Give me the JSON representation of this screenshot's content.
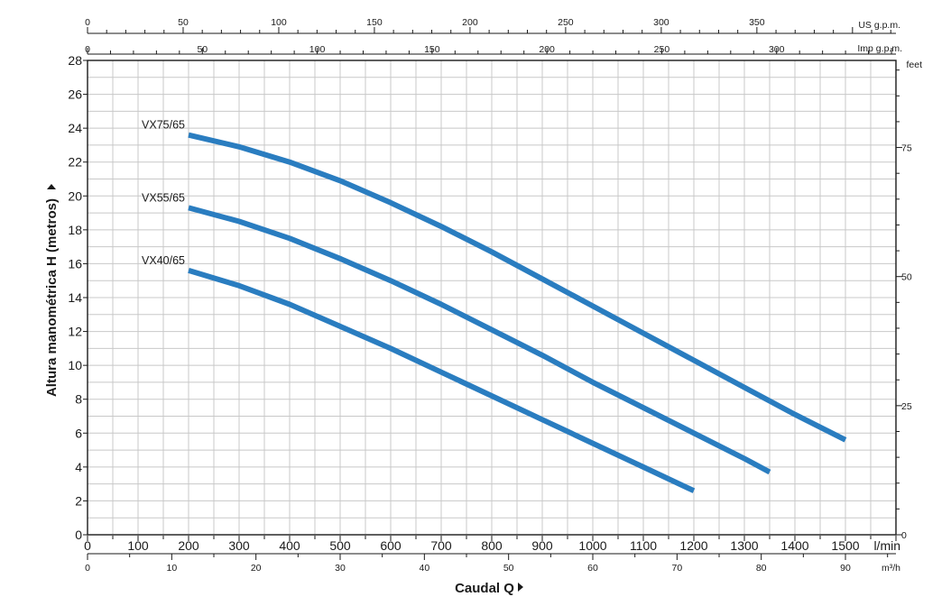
{
  "chart_data": {
    "type": "line",
    "xlabel": "Caudal Q",
    "ylabel": "Altura manométrica H (metros)",
    "xlim": [
      0,
      1600
    ],
    "ylim": [
      0,
      28
    ],
    "grid": true,
    "x_ticks": [
      "0",
      "100",
      "200",
      "300",
      "400",
      "500",
      "600",
      "700",
      "800",
      "900",
      "1000",
      "1100",
      "1200",
      "1300",
      "1400",
      "1500"
    ],
    "x_unit": "l/min",
    "y_ticks": [
      "0",
      "2",
      "4",
      "6",
      "8",
      "10",
      "12",
      "14",
      "16",
      "18",
      "20",
      "22",
      "24",
      "26",
      "28"
    ],
    "series_color": "#2a7dc0",
    "series": [
      {
        "name": "VX75/65",
        "x": [
          200,
          300,
          400,
          500,
          600,
          700,
          800,
          900,
          1000,
          1100,
          1200,
          1300,
          1400,
          1500
        ],
        "y": [
          23.6,
          22.9,
          22.0,
          20.9,
          19.6,
          18.2,
          16.7,
          15.1,
          13.5,
          11.9,
          10.3,
          8.7,
          7.1,
          5.6
        ]
      },
      {
        "name": "VX55/65",
        "x": [
          200,
          300,
          400,
          500,
          600,
          700,
          800,
          900,
          1000,
          1100,
          1200,
          1300,
          1350
        ],
        "y": [
          19.3,
          18.5,
          17.5,
          16.3,
          15.0,
          13.6,
          12.1,
          10.6,
          9.0,
          7.5,
          6.0,
          4.5,
          3.7
        ]
      },
      {
        "name": "VX40/65",
        "x": [
          200,
          300,
          400,
          500,
          600,
          700,
          800,
          900,
          1000,
          1100,
          1200
        ],
        "y": [
          15.6,
          14.7,
          13.6,
          12.3,
          11.0,
          9.6,
          8.2,
          6.8,
          5.4,
          4.0,
          2.6
        ]
      }
    ],
    "top_axis_us": {
      "unit": "US g.p.m.",
      "labels": [
        "0",
        "50",
        "100",
        "150",
        "200",
        "250",
        "300",
        "350"
      ],
      "values": [
        0,
        50,
        100,
        150,
        200,
        250,
        300,
        350
      ],
      "lmin_per_unit": 3.785
    },
    "top_axis_imp": {
      "unit": "Imp g.p.m.",
      "labels": [
        "0",
        "50",
        "100",
        "150",
        "200",
        "250",
        "300"
      ],
      "values": [
        0,
        50,
        100,
        150,
        200,
        250,
        300
      ],
      "lmin_per_unit": 4.546
    },
    "bottom_axis_m3h": {
      "unit": "m³/h",
      "labels": [
        "0",
        "10",
        "20",
        "30",
        "40",
        "50",
        "60",
        "70",
        "80",
        "90"
      ],
      "values": [
        0,
        10,
        20,
        30,
        40,
        50,
        60,
        70,
        80,
        90
      ],
      "lmin_per_unit": 16.667
    },
    "right_axis_feet": {
      "unit": "feet",
      "labels": [
        "0",
        "25",
        "50",
        "75"
      ],
      "values": [
        0,
        25,
        50,
        75
      ],
      "m_per_unit": 0.3048
    }
  }
}
